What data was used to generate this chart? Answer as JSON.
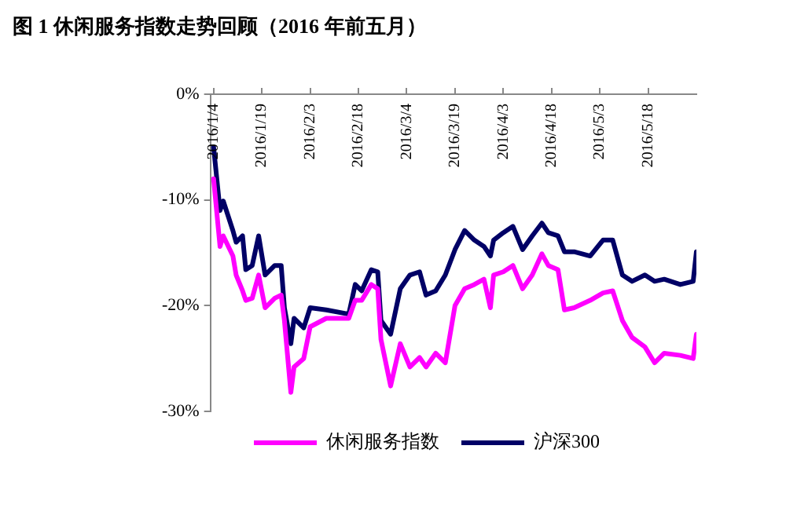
{
  "chart_data": {
    "type": "line",
    "title": "图 1 休闲服务指数走势回顾（2016 年前五月）",
    "x": [
      "2016-01-04",
      "2016-01-06",
      "2016-01-07",
      "2016-01-10",
      "2016-01-11",
      "2016-01-13",
      "2016-01-14",
      "2016-01-16",
      "2016-01-18",
      "2016-01-20",
      "2016-01-23",
      "2016-01-25",
      "2016-01-26",
      "2016-01-28",
      "2016-01-29",
      "2016-02-01",
      "2016-02-03",
      "2016-02-08",
      "2016-02-15",
      "2016-02-17",
      "2016-02-19",
      "2016-02-22",
      "2016-02-24",
      "2016-02-25",
      "2016-02-28",
      "2016-03-02",
      "2016-03-05",
      "2016-03-08",
      "2016-03-10",
      "2016-03-13",
      "2016-03-16",
      "2016-03-19",
      "2016-03-22",
      "2016-03-25",
      "2016-03-28",
      "2016-03-30",
      "2016-03-31",
      "2016-04-03",
      "2016-04-06",
      "2016-04-09",
      "2016-04-12",
      "2016-04-15",
      "2016-04-17",
      "2016-04-20",
      "2016-04-22",
      "2016-04-25",
      "2016-04-30",
      "2016-05-04",
      "2016-05-07",
      "2016-05-10",
      "2016-05-13",
      "2016-05-17",
      "2016-05-20",
      "2016-05-23",
      "2016-05-28",
      "2016-06-01",
      "2016-06-02"
    ],
    "series": [
      {
        "name": "休闲服务指数",
        "color": "#ff00ff",
        "values": [
          -8,
          -14.4,
          -13.4,
          -15.3,
          -17.1,
          -18.6,
          -19.5,
          -19.3,
          -17.1,
          -20.2,
          -19.3,
          -19,
          -21.4,
          -28.2,
          -25.8,
          -25,
          -22,
          -21.2,
          -21.2,
          -19.5,
          -19.5,
          -18,
          -18.4,
          -23.2,
          -27.6,
          -23.6,
          -25.8,
          -24.9,
          -25.8,
          -24.5,
          -25.4,
          -20,
          -18.4,
          -18,
          -17.5,
          -20.2,
          -17.1,
          -16.8,
          -16.2,
          -18.4,
          -17.1,
          -15.1,
          -16.2,
          -16.6,
          -20.4,
          -20.2,
          -19.5,
          -18.8,
          -18.6,
          -21.4,
          -23,
          -23.9,
          -25.4,
          -24.5,
          -24.7,
          -25,
          -22.7
        ]
      },
      {
        "name": "沪深300",
        "color": "#000066",
        "values": [
          -5,
          -11,
          -10.1,
          -12.9,
          -14,
          -13.4,
          -16.6,
          -16.2,
          -13.4,
          -17.1,
          -16.2,
          -16.2,
          -20.2,
          -23.6,
          -21.2,
          -22.1,
          -20.2,
          -20.4,
          -20.8,
          -18,
          -18.6,
          -16.6,
          -16.8,
          -21.4,
          -22.7,
          -18.4,
          -17.1,
          -16.8,
          -19,
          -18.6,
          -17.1,
          -14.7,
          -12.9,
          -13.8,
          -14.4,
          -15.3,
          -13.8,
          -13.1,
          -12.5,
          -14.7,
          -13.4,
          -12.2,
          -13.1,
          -13.4,
          -14.9,
          -14.9,
          -15.3,
          -13.8,
          -13.8,
          -17.1,
          -17.7,
          -17.1,
          -17.7,
          -17.5,
          -18,
          -17.7,
          -14.9
        ]
      }
    ],
    "xlim": [
      "2016-01-03",
      "2016-06-02"
    ],
    "xticks": [
      {
        "value": "2016-01-04",
        "label": "2016/1/4"
      },
      {
        "value": "2016-01-19",
        "label": "2016/1/19"
      },
      {
        "value": "2016-02-03",
        "label": "2016/2/3"
      },
      {
        "value": "2016-02-18",
        "label": "2016/2/18"
      },
      {
        "value": "2016-03-04",
        "label": "2016/3/4"
      },
      {
        "value": "2016-03-19",
        "label": "2016/3/19"
      },
      {
        "value": "2016-04-03",
        "label": "2016/4/3"
      },
      {
        "value": "2016-04-18",
        "label": "2016/4/18"
      },
      {
        "value": "2016-05-03",
        "label": "2016/5/3"
      },
      {
        "value": "2016-05-18",
        "label": "2016/5/18"
      }
    ],
    "ylim": [
      -30,
      0
    ],
    "yticks": [
      {
        "value": 0,
        "label": "0%"
      },
      {
        "value": -10,
        "label": "-10%"
      },
      {
        "value": -20,
        "label": "-20%"
      },
      {
        "value": -30,
        "label": "-30%"
      }
    ],
    "grid": false,
    "legend": "bottom",
    "marker": "none",
    "line_style": "solid"
  }
}
